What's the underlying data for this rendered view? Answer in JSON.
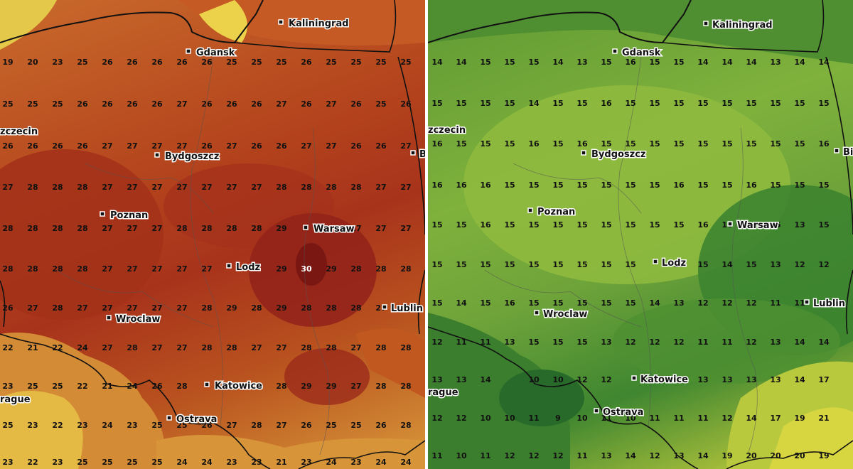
{
  "map_left": {
    "colors": {
      "base": "#b5461d",
      "hot": "#8e1f16",
      "warm": "#c9692c",
      "cool": "#e0a63d",
      "yellow": "#ecd24a",
      "sea": "#e8e85a"
    },
    "rows": [
      [
        "19",
        "20",
        "23",
        "25",
        "26",
        "26",
        "26",
        "26",
        "26",
        "25",
        "25",
        "25",
        "26",
        "25",
        "25",
        "25",
        "25"
      ],
      [
        "25",
        "25",
        "25",
        "26",
        "26",
        "26",
        "26",
        "27",
        "26",
        "26",
        "26",
        "27",
        "26",
        "27",
        "26",
        "25",
        "26"
      ],
      [
        "26",
        "26",
        "26",
        "26",
        "27",
        "27",
        "27",
        "27",
        "26",
        "27",
        "26",
        "26",
        "27",
        "27",
        "26",
        "26",
        "27"
      ],
      [
        "27",
        "28",
        "28",
        "28",
        "27",
        "27",
        "27",
        "27",
        "27",
        "27",
        "27",
        "28",
        "28",
        "28",
        "28",
        "27",
        "27"
      ],
      [
        "28",
        "28",
        "28",
        "28",
        "27",
        "27",
        "27",
        "28",
        "28",
        "28",
        "28",
        "29",
        "",
        "",
        "27",
        "27",
        "27"
      ],
      [
        "28",
        "28",
        "28",
        "28",
        "27",
        "27",
        "27",
        "27",
        "27",
        "",
        "",
        "29",
        "30",
        "29",
        "28",
        "28",
        "28"
      ],
      [
        "26",
        "27",
        "28",
        "27",
        "27",
        "27",
        "27",
        "27",
        "28",
        "29",
        "28",
        "29",
        "28",
        "28",
        "28",
        "27",
        "28"
      ],
      [
        "22",
        "21",
        "22",
        "24",
        "27",
        "28",
        "27",
        "27",
        "28",
        "28",
        "27",
        "27",
        "28",
        "28",
        "27",
        "28",
        "28"
      ],
      [
        "23",
        "25",
        "25",
        "22",
        "21",
        "24",
        "26",
        "28",
        "",
        "",
        "",
        "28",
        "29",
        "29",
        "27",
        "28",
        "28"
      ],
      [
        "25",
        "23",
        "22",
        "23",
        "24",
        "23",
        "25",
        "25",
        "26",
        "27",
        "28",
        "27",
        "26",
        "25",
        "25",
        "26",
        "28"
      ],
      [
        "23",
        "22",
        "23",
        "25",
        "25",
        "25",
        "25",
        "24",
        "24",
        "23",
        "23",
        "21",
        "23",
        "24",
        "23",
        "24",
        "24"
      ]
    ],
    "cities": [
      "Kaliningrad",
      "Gdansk",
      "Szczecin",
      "Bydgoszcz",
      "Poznan",
      "Warsaw",
      "Lodz",
      "Wroclaw",
      "Lublin",
      "Katowice",
      "Prague",
      "Ostrava",
      "Bialystok"
    ],
    "city_labels": {
      "kaliningrad": "Kaliningrad",
      "gdansk": "Gdansk",
      "szczecin": "zczecin",
      "bydgoszcz": "Bydgoszcz",
      "poznan": "Poznan",
      "warsaw": "Warsaw",
      "lodz": "Lodz",
      "wroclaw": "Wroclaw",
      "lublin": "Lublin",
      "katowice": "Katowice",
      "prague": "rague",
      "ostrava": "Ostrava",
      "bialystok": "B"
    }
  },
  "map_right": {
    "colors": {
      "base": "#7fb13c",
      "dark": "#3f8630",
      "darker": "#2e6e2a",
      "light": "#a6c63c",
      "yellow": "#d6d43e"
    },
    "rows": [
      [
        "14",
        "14",
        "15",
        "15",
        "15",
        "14",
        "13",
        "15",
        "16",
        "15",
        "15",
        "14",
        "14",
        "14",
        "13",
        "14",
        "14"
      ],
      [
        "15",
        "15",
        "15",
        "15",
        "14",
        "15",
        "15",
        "16",
        "15",
        "15",
        "15",
        "15",
        "15",
        "15",
        "15",
        "15",
        "15"
      ],
      [
        "16",
        "15",
        "15",
        "15",
        "16",
        "15",
        "16",
        "15",
        "15",
        "15",
        "15",
        "15",
        "15",
        "15",
        "15",
        "15",
        "16"
      ],
      [
        "16",
        "16",
        "16",
        "15",
        "15",
        "15",
        "15",
        "15",
        "15",
        "15",
        "16",
        "15",
        "15",
        "16",
        "15",
        "15",
        "15"
      ],
      [
        "15",
        "15",
        "16",
        "15",
        "15",
        "15",
        "15",
        "15",
        "15",
        "15",
        "15",
        "16",
        "16",
        "",
        "15",
        "13",
        "15"
      ],
      [
        "15",
        "15",
        "15",
        "15",
        "15",
        "15",
        "15",
        "15",
        "15",
        "",
        "15",
        "15",
        "14",
        "15",
        "13",
        "12",
        "12"
      ],
      [
        "15",
        "14",
        "15",
        "16",
        "15",
        "15",
        "15",
        "15",
        "15",
        "14",
        "13",
        "12",
        "12",
        "12",
        "11",
        "11",
        "12"
      ],
      [
        "12",
        "11",
        "11",
        "13",
        "15",
        "15",
        "15",
        "13",
        "12",
        "12",
        "12",
        "11",
        "11",
        "12",
        "13",
        "14",
        "14"
      ],
      [
        "13",
        "13",
        "14",
        "",
        "10",
        "10",
        "12",
        "12",
        "",
        "13",
        "13",
        "13",
        "13",
        "13",
        "13",
        "14",
        "17"
      ],
      [
        "12",
        "12",
        "10",
        "10",
        "11",
        "9",
        "10",
        "11",
        "10",
        "11",
        "11",
        "11",
        "12",
        "14",
        "17",
        "19",
        "21"
      ],
      [
        "11",
        "10",
        "11",
        "12",
        "12",
        "12",
        "11",
        "13",
        "14",
        "12",
        "13",
        "14",
        "19",
        "20",
        "20",
        "20",
        "19"
      ]
    ],
    "cities": [
      "Kaliningrad",
      "Gdansk",
      "Szczecin",
      "Bydgoszcz",
      "Poznan",
      "Warsaw",
      "Lodz",
      "Wroclaw",
      "Lublin",
      "Katowice",
      "Prague",
      "Ostrava",
      "Bialystok"
    ],
    "city_labels": {
      "kaliningrad": "Kaliningrad",
      "gdansk": "Gdansk",
      "szczecin": "zczecin",
      "bydgoszcz": "Bydgoszcz",
      "poznan": "Poznan",
      "warsaw": "Warsaw",
      "lodz": "Lodz",
      "wroclaw": "Wroclaw",
      "lublin": "Lublin",
      "katowice": "Katowice",
      "prague": "rague",
      "ostrava": "Ostrava",
      "bialystok": "Bi"
    }
  }
}
